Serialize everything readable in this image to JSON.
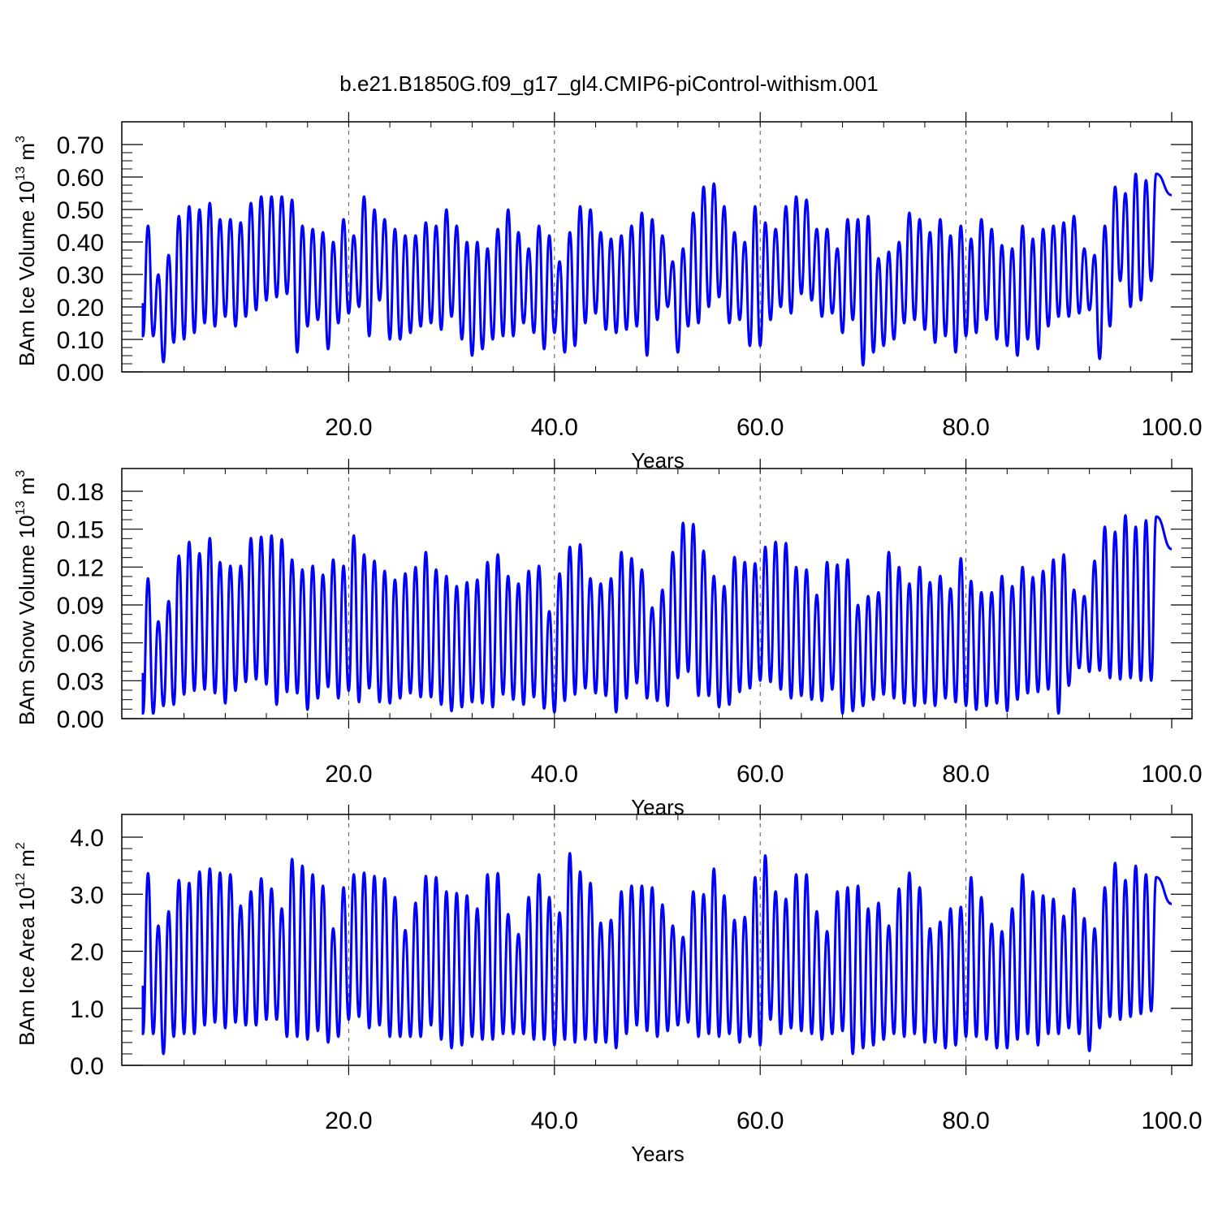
{
  "title": "b.e21.B1850G.f09_g17_gl4.CMIP6-piControl-withism.001",
  "chart_data": [
    {
      "type": "line",
      "xlabel": "Years",
      "ylabel_base": "BAm Ice Volume 10",
      "ylabel_exp": "13",
      "ylabel_unit": " m",
      "ylabel_unit_exp": "3",
      "xlim": [
        0.0,
        100.0
      ],
      "ylim": [
        0.0,
        0.7
      ],
      "xticks": [
        "20.0",
        "40.0",
        "60.0",
        "80.0",
        "100.0"
      ],
      "yticks": [
        "0.00",
        "0.10",
        "0.20",
        "0.30",
        "0.40",
        "0.50",
        "0.60",
        "0.70"
      ],
      "grid_vertical": true,
      "color": "#0000ff",
      "series": [
        {
          "x_start": 0.5,
          "x_step": 1,
          "peaks": [
            0.45,
            0.3,
            0.36,
            0.48,
            0.51,
            0.5,
            0.52,
            0.47,
            0.47,
            0.46,
            0.52,
            0.54,
            0.54,
            0.54,
            0.53,
            0.45,
            0.44,
            0.43,
            0.4,
            0.47,
            0.42,
            0.54,
            0.5,
            0.47,
            0.44,
            0.42,
            0.42,
            0.46,
            0.45,
            0.5,
            0.45,
            0.4,
            0.4,
            0.38,
            0.44,
            0.5,
            0.43,
            0.38,
            0.45,
            0.42,
            0.34,
            0.43,
            0.51,
            0.5,
            0.43,
            0.41,
            0.42,
            0.45,
            0.49,
            0.47,
            0.42,
            0.34,
            0.38,
            0.49,
            0.57,
            0.58,
            0.51,
            0.43,
            0.4,
            0.51,
            0.46,
            0.44,
            0.51,
            0.54,
            0.53,
            0.44,
            0.44,
            0.38,
            0.47,
            0.47,
            0.48,
            0.35,
            0.37,
            0.4,
            0.49,
            0.47,
            0.43,
            0.47,
            0.42,
            0.45,
            0.41,
            0.47,
            0.44,
            0.39,
            0.38,
            0.45,
            0.41,
            0.44,
            0.45,
            0.46,
            0.48,
            0.38,
            0.36,
            0.45,
            0.57,
            0.55,
            0.61,
            0.59,
            0.61
          ],
          "troughs": [
            0.11,
            0.03,
            0.09,
            0.1,
            0.12,
            0.15,
            0.14,
            0.17,
            0.14,
            0.17,
            0.19,
            0.22,
            0.23,
            0.24,
            0.06,
            0.14,
            0.16,
            0.07,
            0.15,
            0.18,
            0.2,
            0.11,
            0.22,
            0.1,
            0.1,
            0.12,
            0.14,
            0.15,
            0.13,
            0.17,
            0.1,
            0.05,
            0.07,
            0.1,
            0.11,
            0.11,
            0.15,
            0.12,
            0.07,
            0.12,
            0.06,
            0.08,
            0.15,
            0.18,
            0.13,
            0.12,
            0.13,
            0.14,
            0.05,
            0.16,
            0.2,
            0.06,
            0.14,
            0.15,
            0.2,
            0.23,
            0.15,
            0.16,
            0.08,
            0.08,
            0.16,
            0.2,
            0.18,
            0.24,
            0.22,
            0.17,
            0.18,
            0.12,
            0.16,
            0.02,
            0.06,
            0.08,
            0.1,
            0.15,
            0.16,
            0.13,
            0.09,
            0.11,
            0.06,
            0.11,
            0.12,
            0.16,
            0.1,
            0.08,
            0.05,
            0.1,
            0.07,
            0.14,
            0.17,
            0.17,
            0.18,
            0.19,
            0.04,
            0.14,
            0.28,
            0.2,
            0.22,
            0.28,
            0.28
          ]
        }
      ]
    },
    {
      "type": "line",
      "xlabel": "Years",
      "ylabel_base": "BAm Snow Volume 10",
      "ylabel_exp": "13",
      "ylabel_unit": " m",
      "ylabel_unit_exp": "3",
      "xlim": [
        0.0,
        100.0
      ],
      "ylim": [
        0.0,
        0.18
      ],
      "xticks": [
        "20.0",
        "40.0",
        "60.0",
        "80.0",
        "100.0"
      ],
      "yticks": [
        "0.00",
        "0.03",
        "0.06",
        "0.09",
        "0.12",
        "0.15",
        "0.18"
      ],
      "grid_vertical": true,
      "color": "#0000ff",
      "series": [
        {
          "x_start": 0.5,
          "x_step": 1,
          "peaks": [
            0.111,
            0.077,
            0.093,
            0.129,
            0.14,
            0.131,
            0.143,
            0.124,
            0.121,
            0.121,
            0.143,
            0.144,
            0.145,
            0.142,
            0.126,
            0.118,
            0.121,
            0.114,
            0.126,
            0.121,
            0.145,
            0.13,
            0.125,
            0.117,
            0.11,
            0.115,
            0.12,
            0.132,
            0.118,
            0.113,
            0.105,
            0.108,
            0.11,
            0.124,
            0.13,
            0.113,
            0.107,
            0.117,
            0.121,
            0.085,
            0.115,
            0.136,
            0.138,
            0.111,
            0.107,
            0.111,
            0.132,
            0.127,
            0.118,
            0.088,
            0.102,
            0.132,
            0.155,
            0.154,
            0.133,
            0.113,
            0.105,
            0.128,
            0.124,
            0.123,
            0.136,
            0.14,
            0.139,
            0.12,
            0.118,
            0.098,
            0.124,
            0.122,
            0.126,
            0.09,
            0.097,
            0.1,
            0.132,
            0.12,
            0.107,
            0.12,
            0.108,
            0.113,
            0.103,
            0.127,
            0.109,
            0.1,
            0.1,
            0.113,
            0.105,
            0.12,
            0.112,
            0.117,
            0.126,
            0.13,
            0.102,
            0.097,
            0.125,
            0.152,
            0.148,
            0.161,
            0.152,
            0.157,
            0.16
          ],
          "troughs": [
            0.004,
            0.01,
            0.011,
            0.019,
            0.022,
            0.023,
            0.02,
            0.012,
            0.022,
            0.029,
            0.031,
            0.027,
            0.011,
            0.021,
            0.02,
            0.007,
            0.016,
            0.025,
            0.016,
            0.022,
            0.013,
            0.024,
            0.013,
            0.012,
            0.016,
            0.02,
            0.017,
            0.017,
            0.011,
            0.006,
            0.009,
            0.013,
            0.012,
            0.009,
            0.019,
            0.015,
            0.011,
            0.017,
            0.008,
            0.005,
            0.014,
            0.019,
            0.024,
            0.02,
            0.018,
            0.005,
            0.016,
            0.028,
            0.016,
            0.014,
            0.01,
            0.032,
            0.037,
            0.018,
            0.018,
            0.009,
            0.011,
            0.021,
            0.024,
            0.03,
            0.029,
            0.023,
            0.016,
            0.018,
            0.015,
            0.014,
            0.023,
            0.004,
            0.006,
            0.01,
            0.015,
            0.019,
            0.016,
            0.012,
            0.01,
            0.012,
            0.01,
            0.016,
            0.013,
            0.01,
            0.007,
            0.01,
            0.012,
            0.006,
            0.015,
            0.02,
            0.021,
            0.023,
            0.004,
            0.026,
            0.04,
            0.037,
            0.038,
            0.032,
            0.031,
            0.032,
            0.03,
            0.03,
            0.031
          ]
        }
      ]
    },
    {
      "type": "line",
      "xlabel": "Years",
      "ylabel_base": "BAm Ice Area 10",
      "ylabel_exp": "12",
      "ylabel_unit": " m",
      "ylabel_unit_exp": "2",
      "xlim": [
        0.0,
        100.0
      ],
      "ylim": [
        0.0,
        4.0
      ],
      "xticks": [
        "20.0",
        "40.0",
        "60.0",
        "80.0",
        "100.0"
      ],
      "yticks": [
        "0.0",
        "1.0",
        "2.0",
        "3.0",
        "4.0"
      ],
      "grid_vertical": true,
      "color": "#0000ff",
      "series": [
        {
          "x_start": 0.5,
          "x_step": 1,
          "peaks": [
            3.37,
            2.45,
            2.7,
            3.25,
            3.2,
            3.4,
            3.45,
            3.38,
            3.35,
            2.8,
            3.05,
            3.28,
            3.1,
            2.75,
            3.62,
            3.5,
            3.35,
            3.15,
            2.4,
            3.12,
            3.35,
            3.38,
            3.32,
            3.28,
            2.95,
            2.37,
            2.85,
            3.32,
            3.3,
            3.05,
            3.02,
            2.98,
            2.75,
            3.35,
            3.37,
            2.65,
            2.3,
            2.95,
            3.35,
            2.95,
            2.68,
            3.72,
            3.4,
            3.2,
            2.5,
            2.55,
            3.05,
            3.15,
            3.15,
            3.12,
            2.82,
            2.45,
            2.25,
            3.05,
            3.0,
            3.45,
            2.98,
            2.55,
            2.6,
            3.3,
            3.68,
            3.05,
            2.92,
            3.35,
            3.35,
            2.7,
            2.35,
            3.05,
            3.12,
            3.15,
            2.75,
            2.85,
            2.45,
            3.1,
            3.38,
            3.12,
            2.4,
            2.52,
            2.75,
            2.78,
            3.3,
            2.95,
            2.48,
            2.35,
            2.75,
            3.35,
            3.05,
            2.98,
            2.92,
            2.62,
            3.1,
            2.58,
            2.4,
            3.12,
            3.55,
            3.25,
            3.5,
            3.35,
            3.3
          ],
          "troughs": [
            0.55,
            0.2,
            0.5,
            0.55,
            0.55,
            0.7,
            0.75,
            0.65,
            0.75,
            0.7,
            0.7,
            0.8,
            0.8,
            0.5,
            0.5,
            0.45,
            0.6,
            0.4,
            0.5,
            0.8,
            0.85,
            0.65,
            0.7,
            0.5,
            0.5,
            0.5,
            0.5,
            0.7,
            0.45,
            0.3,
            0.35,
            0.5,
            0.45,
            0.45,
            0.55,
            0.55,
            0.55,
            0.45,
            0.45,
            0.35,
            0.45,
            0.4,
            0.45,
            0.4,
            0.4,
            0.3,
            0.55,
            0.7,
            0.6,
            0.5,
            0.6,
            0.7,
            0.75,
            0.5,
            0.55,
            0.5,
            0.55,
            0.4,
            0.5,
            0.35,
            0.8,
            0.55,
            0.65,
            0.6,
            0.55,
            0.45,
            0.55,
            0.6,
            0.2,
            0.3,
            0.35,
            0.45,
            0.55,
            0.5,
            0.55,
            0.4,
            0.4,
            0.3,
            0.35,
            0.5,
            0.5,
            0.45,
            0.3,
            0.3,
            0.45,
            0.55,
            0.35,
            0.55,
            0.55,
            0.65,
            0.55,
            0.25,
            0.65,
            0.85,
            0.8,
            0.85,
            0.9,
            0.95,
            0.95
          ]
        }
      ]
    }
  ]
}
